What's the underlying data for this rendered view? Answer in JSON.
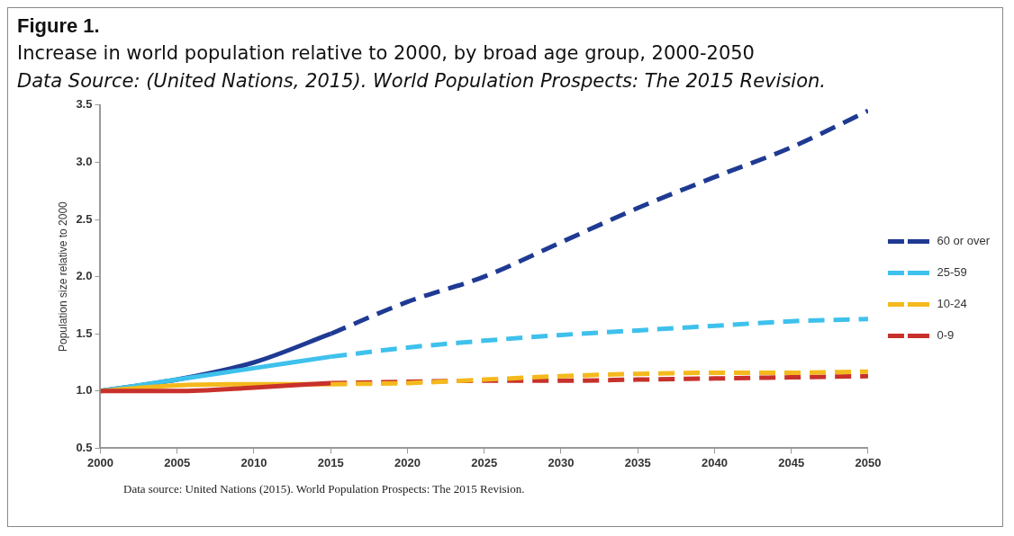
{
  "chart_data": {
    "type": "line",
    "title": "Figure 1.",
    "subtitle": "Increase in world population relative to 2000, by broad age group, 2000-2050",
    "annotations": [
      "Data Source: (United Nations, 2015). World Population Prospects: The 2015 Revision.",
      "Data source: United Nations (2015). World Population Prospects: The 2015 Revision."
    ],
    "ylabel": "Population size relative to 2000",
    "xlim": [
      2000,
      2050
    ],
    "xticks": [
      2000,
      2005,
      2010,
      2015,
      2020,
      2025,
      2030,
      2035,
      2040,
      2045,
      2050
    ],
    "ylim": [
      0.5,
      3.5
    ],
    "yticks": [
      {
        "value": 0.5,
        "label": "0.5"
      },
      {
        "value": 1,
        "label": "1.0"
      },
      {
        "value": 1.5,
        "label": "1.5"
      },
      {
        "value": 2,
        "label": "2.0"
      },
      {
        "value": 2.5,
        "label": "2.5"
      },
      {
        "value": 3,
        "label": "3.0"
      },
      {
        "value": 3.5,
        "label": "3.5"
      }
    ],
    "grid": false,
    "legend": "right",
    "marker": "none",
    "series": [
      {
        "name": "60 or over",
        "color": "#1f3a93",
        "line_style": "dashed",
        "x": [
          2015,
          2020,
          2025,
          2030,
          2035,
          2040,
          2045,
          2050
        ],
        "values": [
          1.5,
          1.78,
          2.0,
          2.3,
          2.6,
          2.87,
          3.13,
          3.45
        ]
      },
      {
        "name": "25-59",
        "color": "#3ec1ec",
        "line_style": "dashed",
        "x": [
          2015,
          2020,
          2025,
          2030,
          2035,
          2040,
          2045,
          2050
        ],
        "values": [
          1.3,
          1.38,
          1.44,
          1.49,
          1.53,
          1.57,
          1.61,
          1.63
        ]
      },
      {
        "name": "10-24",
        "color": "#f4b91c",
        "line_style": "dashed",
        "x": [
          2015,
          2020,
          2025,
          2030,
          2035,
          2040,
          2045,
          2050
        ],
        "values": [
          1.06,
          1.07,
          1.1,
          1.13,
          1.15,
          1.16,
          1.16,
          1.17
        ]
      },
      {
        "name": "0-9",
        "color": "#c8312b",
        "line_style": "dashed",
        "x": [
          2015,
          2020,
          2025,
          2030,
          2035,
          2040,
          2045,
          2050
        ],
        "values": [
          1.07,
          1.08,
          1.09,
          1.09,
          1.1,
          1.11,
          1.12,
          1.13
        ]
      },
      {
        "color": "#c8312b",
        "line_style": "solid",
        "x": [
          2000,
          2005,
          2010,
          2015
        ],
        "values": [
          1.0,
          1.0,
          1.03,
          1.07
        ]
      },
      {
        "color": "#f4b91c",
        "line_style": "solid",
        "x": [
          2000,
          2005,
          2010,
          2015
        ],
        "values": [
          1.0,
          1.05,
          1.06,
          1.06
        ]
      },
      {
        "color": "#3ec1ec",
        "line_style": "solid",
        "x": [
          2000,
          2005,
          2010,
          2015
        ],
        "values": [
          1.0,
          1.1,
          1.2,
          1.3
        ]
      },
      {
        "color": "#1f3a93",
        "line_style": "solid",
        "x": [
          2000,
          2005,
          2010,
          2015
        ],
        "values": [
          1.0,
          1.1,
          1.25,
          1.5
        ]
      }
    ]
  }
}
